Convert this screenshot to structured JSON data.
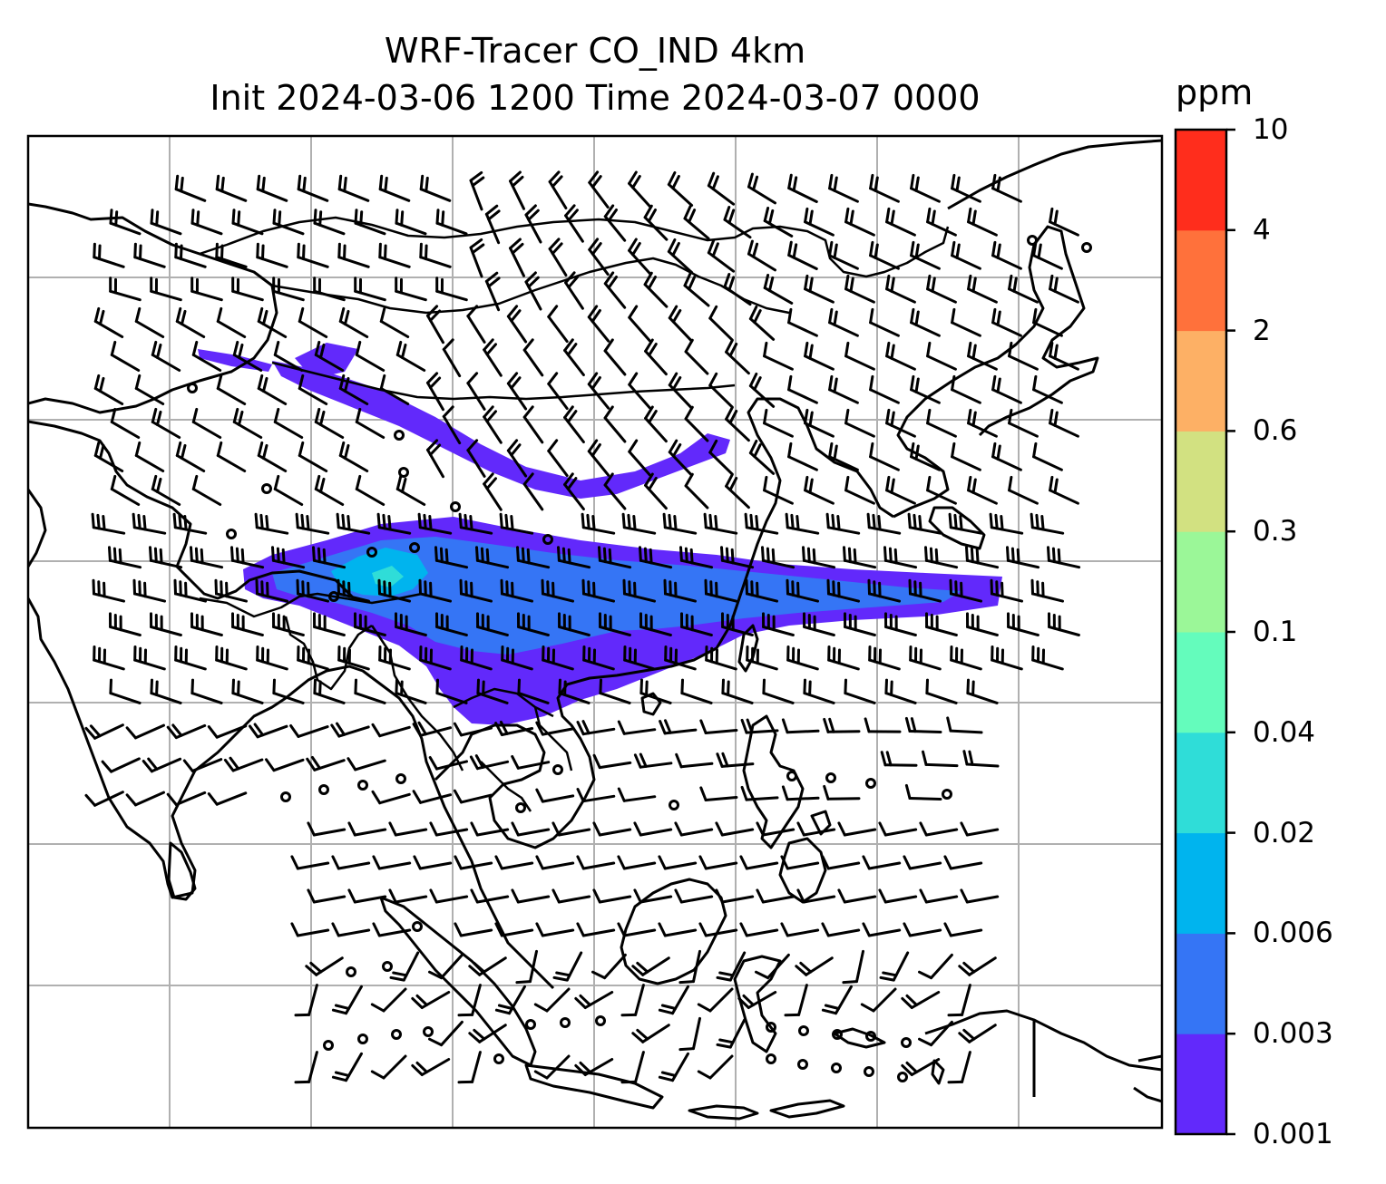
{
  "title": {
    "line1": "WRF-Tracer CO_IND 4km",
    "line2": "Init 2024-03-06 1200 Time 2024-03-07 0000"
  },
  "colorbar": {
    "unit": "ppm",
    "levels": [
      "0.001",
      "0.003",
      "0.006",
      "0.02",
      "0.04",
      "0.1",
      "0.3",
      "0.6",
      "2",
      "4",
      "10"
    ],
    "colors": [
      "#6229fb",
      "#3575f5",
      "#00b4ee",
      "#2fddd8",
      "#64fcbc",
      "#9bf798",
      "#d2e181",
      "#fdb065",
      "#ff713b",
      "#ff2d1c"
    ]
  },
  "map": {
    "background": "#ffffff",
    "gridline_color": "#b0b0b0",
    "coastline_color": "#000000",
    "features": [
      "coastlines",
      "country-borders",
      "lat-lon-gridlines",
      "wind-barbs",
      "co-tracer-plume"
    ]
  }
}
